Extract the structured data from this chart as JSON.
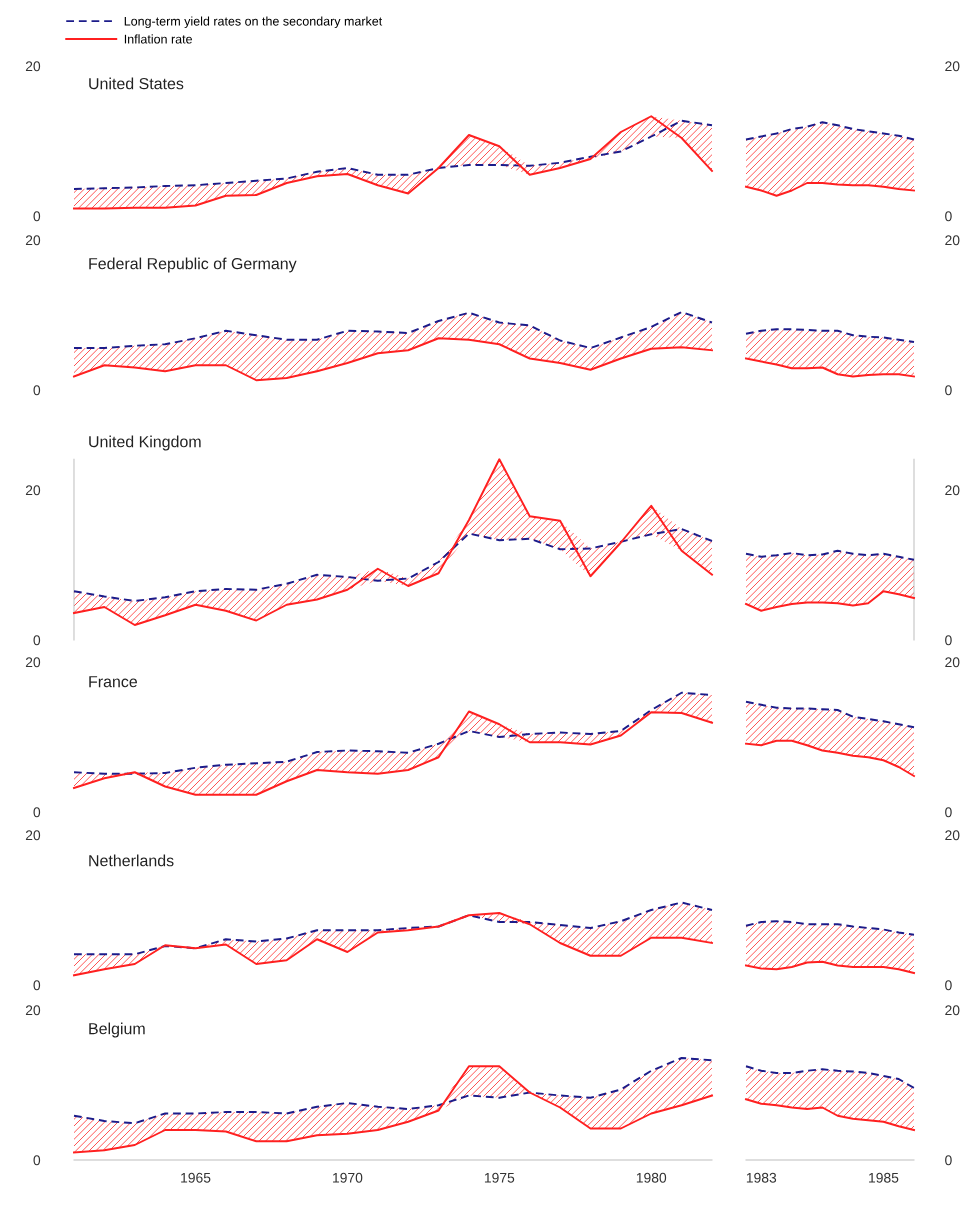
{
  "chart_data": [
    {
      "type": "line",
      "title": "United States",
      "legend": "top left",
      "x": [
        1961,
        1962,
        1963,
        1964,
        1965,
        1966,
        1967,
        1968,
        1969,
        1970,
        1971,
        1972,
        1973,
        1974,
        1975,
        1976,
        1977,
        1978,
        1979,
        1980,
        1981,
        1982
      ],
      "ylim": [
        0,
        20
      ],
      "yticks": [
        0,
        20
      ],
      "tick_labels": "y",
      "series": [
        {
          "name": "Long-term yield rates on the secondary market",
          "color": "#1c1c8a",
          "line_style": "dashed",
          "values": [
            3.6,
            3.7,
            3.8,
            4.0,
            4.1,
            4.4,
            4.7,
            5.0,
            5.9,
            6.4,
            5.5,
            5.5,
            6.4,
            6.8,
            6.8,
            6.7,
            7.1,
            7.9,
            8.6,
            10.6,
            12.7,
            12.1
          ],
          "lower": [
            1.0,
            1.0,
            1.1,
            1.1,
            1.4,
            2.7,
            2.8,
            4.4,
            5.3,
            5.6,
            4.1,
            3.0,
            6.4,
            6.8,
            6.8,
            5.5,
            6.4,
            7.6,
            8.6,
            10.6,
            10.4,
            6.0
          ],
          "upper": [
            3.6,
            3.7,
            3.8,
            4.0,
            4.1,
            4.4,
            4.7,
            5.0,
            5.9,
            6.4,
            5.5,
            5.5,
            6.4,
            10.8,
            9.3,
            6.7,
            7.1,
            7.9,
            11.2,
            13.3,
            12.7,
            12.1
          ]
        },
        {
          "name": "Inflation rate",
          "color": "#ff2020",
          "line_style": "solid",
          "values": [
            1.0,
            1.0,
            1.1,
            1.1,
            1.4,
            2.7,
            2.8,
            4.4,
            5.3,
            5.6,
            4.1,
            3.0,
            6.4,
            10.8,
            9.3,
            5.5,
            6.4,
            7.6,
            11.2,
            13.3,
            10.4,
            6.0
          ]
        }
      ]
    },
    {
      "type": "line",
      "x": [
        1982.75,
        1983.0,
        1983.25,
        1983.5,
        1983.75,
        1984.0,
        1984.25,
        1984.5,
        1984.75,
        1985.0,
        1985.25,
        1985.5
      ],
      "ylim": [
        0,
        20
      ],
      "yticks": [
        0,
        20
      ],
      "tick_labels": "y",
      "series": [
        {
          "color": "#1c1c8a",
          "line_style": "dashed",
          "values": [
            10.2,
            10.6,
            11.0,
            11.6,
            11.9,
            12.5,
            12.1,
            11.6,
            11.3,
            11.0,
            10.7,
            10.2
          ],
          "lower": [
            3.9,
            3.4,
            2.7,
            3.4,
            4.4,
            4.4,
            4.2,
            4.1,
            4.1,
            3.9,
            3.6,
            3.4
          ],
          "upper": [
            10.2,
            10.6,
            11.0,
            11.6,
            11.9,
            12.5,
            12.1,
            11.6,
            11.3,
            11.0,
            10.7,
            10.2
          ]
        },
        {
          "color": "#ff2020",
          "line_style": "solid",
          "values": [
            3.9,
            3.4,
            2.7,
            3.4,
            4.4,
            4.4,
            4.2,
            4.1,
            4.1,
            3.9,
            3.6,
            3.4
          ]
        }
      ]
    },
    {
      "type": "line",
      "title": "Federal Republic of Germany",
      "x": [
        1961,
        1962,
        1963,
        1964,
        1965,
        1966,
        1967,
        1968,
        1969,
        1970,
        1971,
        1972,
        1973,
        1974,
        1975,
        1976,
        1977,
        1978,
        1979,
        1980,
        1981,
        1982
      ],
      "ylim": [
        0,
        20
      ],
      "yticks": [
        0,
        20
      ],
      "tick_labels": "y",
      "series": [
        {
          "color": "#1c1c8a",
          "line_style": "dashed",
          "values": [
            5.6,
            5.6,
            5.9,
            6.1,
            6.9,
            7.9,
            7.3,
            6.7,
            6.7,
            7.9,
            7.8,
            7.6,
            9.2,
            10.3,
            9.0,
            8.6,
            6.6,
            5.6,
            7.0,
            8.4,
            10.4,
            9.0
          ],
          "lower": [
            1.8,
            3.3,
            3.0,
            2.5,
            3.3,
            3.3,
            1.3,
            1.6,
            2.5,
            3.6,
            4.9,
            5.3,
            6.9,
            6.7,
            6.1,
            4.2,
            3.6,
            2.7,
            4.2,
            5.5,
            5.7,
            5.3
          ],
          "upper": [
            5.6,
            5.6,
            5.9,
            6.1,
            6.9,
            7.9,
            7.3,
            6.7,
            6.7,
            7.9,
            7.8,
            7.6,
            9.2,
            10.3,
            9.0,
            8.6,
            6.6,
            5.6,
            7.0,
            8.4,
            10.4,
            9.0
          ]
        },
        {
          "color": "#ff2020",
          "line_style": "solid",
          "values": [
            1.8,
            3.3,
            3.0,
            2.5,
            3.3,
            3.3,
            1.3,
            1.6,
            2.5,
            3.6,
            4.9,
            5.3,
            6.9,
            6.7,
            6.1,
            4.2,
            3.6,
            2.7,
            4.2,
            5.5,
            5.7,
            5.3
          ]
        }
      ]
    },
    {
      "type": "line",
      "x": [
        1982.75,
        1983.0,
        1983.25,
        1983.5,
        1983.75,
        1984.0,
        1984.25,
        1984.5,
        1984.75,
        1985.0,
        1985.25,
        1985.5
      ],
      "ylim": [
        0,
        20
      ],
      "yticks": [
        0,
        20
      ],
      "tick_labels": "y",
      "series": [
        {
          "color": "#1c1c8a",
          "line_style": "dashed",
          "values": [
            7.5,
            7.9,
            8.1,
            8.1,
            8.0,
            7.9,
            7.9,
            7.3,
            7.1,
            7.0,
            6.7,
            6.4
          ],
          "lower": [
            4.2,
            3.8,
            3.4,
            2.9,
            2.9,
            3.0,
            2.1,
            1.8,
            2.0,
            2.1,
            2.1,
            1.8
          ],
          "upper": [
            7.5,
            7.9,
            8.1,
            8.1,
            8.0,
            7.9,
            7.9,
            7.3,
            7.1,
            7.0,
            6.7,
            6.4
          ]
        },
        {
          "color": "#ff2020",
          "line_style": "solid",
          "values": [
            4.2,
            3.8,
            3.4,
            2.9,
            2.9,
            3.0,
            2.1,
            1.8,
            2.0,
            2.1,
            2.1,
            1.8
          ]
        }
      ]
    },
    {
      "type": "line",
      "title": "United Kingdom",
      "x": [
        1961,
        1962,
        1963,
        1964,
        1965,
        1966,
        1967,
        1968,
        1969,
        1970,
        1971,
        1972,
        1973,
        1974,
        1975,
        1976,
        1977,
        1978,
        1979,
        1980,
        1981,
        1982
      ],
      "ylim": [
        0,
        24.1
      ],
      "yticks": [
        0,
        20
      ],
      "tick_labels": "y",
      "series": [
        {
          "color": "#1c1c8a",
          "line_style": "dashed",
          "values": [
            6.5,
            5.8,
            5.2,
            5.7,
            6.5,
            6.8,
            6.7,
            7.5,
            8.7,
            8.4,
            7.9,
            8.2,
            10.4,
            14.2,
            13.3,
            13.5,
            12.1,
            12.2,
            13.1,
            14.1,
            14.8,
            13.2
          ],
          "lower": [
            3.6,
            4.4,
            2.0,
            3.3,
            4.7,
            3.9,
            2.6,
            4.7,
            5.4,
            6.7,
            7.9,
            7.2,
            8.9,
            14.2,
            13.3,
            13.5,
            12.1,
            8.5,
            13.0,
            14.1,
            11.9,
            8.7
          ],
          "upper": [
            6.5,
            5.8,
            5.2,
            5.7,
            6.5,
            6.8,
            6.7,
            7.5,
            8.7,
            8.4,
            9.5,
            8.2,
            10.4,
            16.0,
            24.1,
            16.5,
            15.9,
            12.2,
            13.1,
            17.9,
            14.8,
            13.2
          ]
        },
        {
          "color": "#ff2020",
          "line_style": "solid",
          "values": [
            3.6,
            4.4,
            2.0,
            3.3,
            4.7,
            3.9,
            2.6,
            4.7,
            5.4,
            6.7,
            9.5,
            7.2,
            8.9,
            16.0,
            24.1,
            16.5,
            15.9,
            8.5,
            13.0,
            17.9,
            11.9,
            8.7
          ]
        }
      ]
    },
    {
      "type": "line",
      "x": [
        1982.75,
        1983.0,
        1983.25,
        1983.5,
        1983.75,
        1984.0,
        1984.25,
        1984.5,
        1984.75,
        1985.0,
        1985.25,
        1985.5
      ],
      "ylim": [
        0,
        24.1
      ],
      "yticks": [
        0,
        20
      ],
      "tick_labels": "y",
      "series": [
        {
          "color": "#1c1c8a",
          "line_style": "dashed",
          "values": [
            11.5,
            11.1,
            11.3,
            11.6,
            11.3,
            11.4,
            11.9,
            11.5,
            11.3,
            11.5,
            11.1,
            10.7
          ],
          "lower": [
            4.8,
            3.9,
            4.4,
            4.8,
            5.0,
            5.0,
            4.9,
            4.6,
            4.9,
            6.5,
            6.1,
            5.6
          ],
          "upper": [
            11.5,
            11.1,
            11.3,
            11.6,
            11.3,
            11.4,
            11.9,
            11.5,
            11.3,
            11.5,
            11.1,
            10.7
          ]
        },
        {
          "color": "#ff2020",
          "line_style": "solid",
          "values": [
            4.8,
            3.9,
            4.4,
            4.8,
            5.0,
            5.0,
            4.9,
            4.6,
            4.9,
            6.5,
            6.1,
            5.6
          ]
        }
      ]
    },
    {
      "type": "line",
      "title": "France",
      "x": [
        1961,
        1962,
        1963,
        1964,
        1965,
        1966,
        1967,
        1968,
        1969,
        1970,
        1971,
        1972,
        1973,
        1974,
        1975,
        1976,
        1977,
        1978,
        1979,
        1980,
        1981,
        1982
      ],
      "ylim": [
        0,
        20
      ],
      "yticks": [
        0,
        20
      ],
      "tick_labels": "y",
      "series": [
        {
          "color": "#1c1c8a",
          "line_style": "dashed",
          "values": [
            5.3,
            5.1,
            5.1,
            5.2,
            5.9,
            6.3,
            6.5,
            6.7,
            8.0,
            8.2,
            8.1,
            7.9,
            9.1,
            10.8,
            10.0,
            10.4,
            10.6,
            10.4,
            10.8,
            13.6,
            15.9,
            15.6
          ],
          "lower": [
            3.2,
            4.5,
            5.1,
            3.4,
            2.3,
            2.3,
            2.3,
            4.1,
            5.6,
            5.3,
            5.1,
            5.6,
            7.3,
            10.8,
            10.0,
            9.3,
            9.3,
            9.0,
            10.2,
            13.3,
            13.2,
            11.9
          ],
          "upper": [
            5.3,
            5.1,
            5.3,
            5.2,
            5.9,
            6.3,
            6.5,
            6.7,
            8.0,
            8.2,
            8.1,
            7.9,
            9.1,
            13.4,
            11.7,
            10.4,
            10.6,
            10.4,
            10.8,
            13.6,
            15.9,
            15.6
          ]
        },
        {
          "color": "#ff2020",
          "line_style": "solid",
          "values": [
            3.2,
            4.5,
            5.3,
            3.4,
            2.3,
            2.3,
            2.3,
            4.1,
            5.6,
            5.3,
            5.1,
            5.6,
            7.3,
            13.4,
            11.7,
            9.3,
            9.3,
            9.0,
            10.2,
            13.3,
            13.2,
            11.9
          ]
        }
      ]
    },
    {
      "type": "line",
      "x": [
        1982.75,
        1983.0,
        1983.25,
        1983.5,
        1983.75,
        1984.0,
        1984.25,
        1984.5,
        1984.75,
        1985.0,
        1985.25,
        1985.5
      ],
      "ylim": [
        0,
        20
      ],
      "yticks": [
        0,
        20
      ],
      "tick_labels": "y",
      "series": [
        {
          "color": "#1c1c8a",
          "line_style": "dashed",
          "values": [
            14.7,
            14.3,
            13.9,
            13.8,
            13.8,
            13.7,
            13.6,
            12.7,
            12.4,
            12.1,
            11.7,
            11.3
          ],
          "lower": [
            9.1,
            8.9,
            9.5,
            9.5,
            8.9,
            8.2,
            7.9,
            7.5,
            7.3,
            6.9,
            6.0,
            4.8
          ],
          "upper": [
            14.7,
            14.3,
            13.9,
            13.8,
            13.8,
            13.7,
            13.6,
            12.7,
            12.4,
            12.1,
            11.7,
            11.3
          ]
        },
        {
          "color": "#ff2020",
          "line_style": "solid",
          "values": [
            9.1,
            8.9,
            9.5,
            9.5,
            8.9,
            8.2,
            7.9,
            7.5,
            7.3,
            6.9,
            6.0,
            4.8
          ]
        }
      ]
    },
    {
      "type": "line",
      "title": "Netherlands",
      "x": [
        1961,
        1962,
        1963,
        1964,
        1965,
        1966,
        1967,
        1968,
        1969,
        1970,
        1971,
        1972,
        1973,
        1974,
        1975,
        1976,
        1977,
        1978,
        1979,
        1980,
        1981,
        1982
      ],
      "ylim": [
        0,
        20
      ],
      "yticks": [
        0,
        20
      ],
      "tick_labels": "y",
      "series": [
        {
          "color": "#1c1c8a",
          "line_style": "dashed",
          "values": [
            4.1,
            4.1,
            4.1,
            5.2,
            4.9,
            6.1,
            5.8,
            6.2,
            7.3,
            7.3,
            7.3,
            7.6,
            7.8,
            9.3,
            8.4,
            8.4,
            8.0,
            7.6,
            8.5,
            10.0,
            11.0,
            10.0
          ],
          "lower": [
            1.3,
            2.1,
            2.8,
            5.2,
            4.9,
            5.4,
            2.8,
            3.3,
            6.1,
            4.4,
            7.0,
            7.3,
            7.8,
            9.3,
            8.4,
            8.1,
            5.6,
            3.9,
            3.9,
            6.3,
            6.3,
            5.6
          ],
          "upper": [
            4.1,
            4.1,
            4.1,
            5.3,
            4.9,
            6.1,
            5.8,
            6.2,
            7.3,
            7.3,
            7.3,
            7.6,
            7.8,
            9.3,
            9.6,
            8.4,
            8.0,
            7.6,
            8.5,
            10.0,
            11.0,
            10.0
          ]
        },
        {
          "color": "#ff2020",
          "line_style": "solid",
          "values": [
            1.3,
            2.1,
            2.8,
            5.3,
            4.9,
            5.4,
            2.8,
            3.3,
            6.1,
            4.4,
            7.0,
            7.3,
            7.8,
            9.3,
            9.6,
            8.1,
            5.6,
            3.9,
            3.9,
            6.3,
            6.3,
            5.6
          ]
        }
      ]
    },
    {
      "type": "line",
      "x": [
        1982.75,
        1983.0,
        1983.25,
        1983.5,
        1983.75,
        1984.0,
        1984.25,
        1984.5,
        1984.75,
        1985.0,
        1985.25,
        1985.5
      ],
      "ylim": [
        0,
        20
      ],
      "yticks": [
        0,
        20
      ],
      "tick_labels": "y",
      "series": [
        {
          "color": "#1c1c8a",
          "line_style": "dashed",
          "values": [
            7.9,
            8.4,
            8.5,
            8.4,
            8.1,
            8.1,
            8.1,
            7.8,
            7.6,
            7.4,
            7.0,
            6.7
          ],
          "lower": [
            2.6,
            2.2,
            2.1,
            2.4,
            3.0,
            3.1,
            2.6,
            2.4,
            2.4,
            2.4,
            2.1,
            1.6
          ],
          "upper": [
            7.9,
            8.4,
            8.5,
            8.4,
            8.1,
            8.1,
            8.1,
            7.8,
            7.6,
            7.4,
            7.0,
            6.7
          ]
        },
        {
          "color": "#ff2020",
          "line_style": "solid",
          "values": [
            2.6,
            2.2,
            2.1,
            2.4,
            3.0,
            3.1,
            2.6,
            2.4,
            2.4,
            2.4,
            2.1,
            1.6
          ]
        }
      ]
    },
    {
      "type": "line",
      "title": "Belgium",
      "x": [
        1961,
        1962,
        1963,
        1964,
        1965,
        1966,
        1967,
        1968,
        1969,
        1970,
        1971,
        1972,
        1973,
        1974,
        1975,
        1976,
        1977,
        1978,
        1979,
        1980,
        1981,
        1982
      ],
      "xlim": [
        1961,
        1982
      ],
      "xticks": [
        1965,
        1970,
        1975,
        1980
      ],
      "ylim": [
        0,
        20
      ],
      "yticks": [
        0,
        20
      ],
      "series": [
        {
          "color": "#1c1c8a",
          "line_style": "dashed",
          "values": [
            5.9,
            5.2,
            4.9,
            6.2,
            6.2,
            6.4,
            6.4,
            6.2,
            7.1,
            7.6,
            7.1,
            6.8,
            7.3,
            8.6,
            8.3,
            9.0,
            8.6,
            8.3,
            9.4,
            11.9,
            13.6,
            13.3
          ],
          "lower": [
            1.0,
            1.3,
            2.0,
            4.0,
            4.0,
            3.8,
            2.5,
            2.5,
            3.3,
            3.5,
            4.0,
            5.1,
            6.6,
            8.6,
            8.3,
            9.0,
            7.0,
            4.2,
            4.2,
            6.2,
            7.3,
            8.6
          ],
          "upper": [
            5.9,
            5.2,
            4.9,
            6.2,
            6.2,
            6.4,
            6.4,
            6.2,
            7.1,
            7.6,
            7.1,
            6.8,
            7.3,
            12.5,
            12.5,
            9.0,
            8.6,
            8.3,
            9.4,
            11.9,
            13.6,
            13.3
          ]
        },
        {
          "color": "#ff2020",
          "line_style": "solid",
          "values": [
            1.0,
            1.3,
            2.0,
            4.0,
            4.0,
            3.8,
            2.5,
            2.5,
            3.3,
            3.5,
            4.0,
            5.1,
            6.6,
            12.5,
            12.5,
            9.0,
            7.0,
            4.2,
            4.2,
            6.2,
            7.3,
            8.6
          ]
        }
      ]
    },
    {
      "type": "line",
      "x": [
        1982.75,
        1983.0,
        1983.25,
        1983.5,
        1983.75,
        1984.0,
        1984.25,
        1984.5,
        1984.75,
        1985.0,
        1985.25,
        1985.5
      ],
      "xlim": [
        1982.75,
        1985.5
      ],
      "xticks": [
        1983,
        1985
      ],
      "ylim": [
        0,
        20
      ],
      "yticks": [
        0,
        20
      ],
      "series": [
        {
          "color": "#1c1c8a",
          "line_style": "dashed",
          "values": [
            12.5,
            11.9,
            11.6,
            11.6,
            11.9,
            12.1,
            11.9,
            11.8,
            11.6,
            11.2,
            10.8,
            9.6
          ],
          "lower": [
            8.1,
            7.5,
            7.3,
            7.0,
            6.8,
            7.0,
            5.9,
            5.5,
            5.3,
            5.1,
            4.5,
            4.0
          ],
          "upper": [
            12.5,
            11.9,
            11.6,
            11.6,
            11.9,
            12.1,
            11.9,
            11.8,
            11.6,
            11.2,
            10.8,
            9.6
          ]
        },
        {
          "color": "#ff2020",
          "line_style": "solid",
          "values": [
            8.1,
            7.5,
            7.3,
            7.0,
            6.8,
            7.0,
            5.9,
            5.5,
            5.3,
            5.1,
            4.5,
            4.0
          ]
        }
      ]
    }
  ]
}
